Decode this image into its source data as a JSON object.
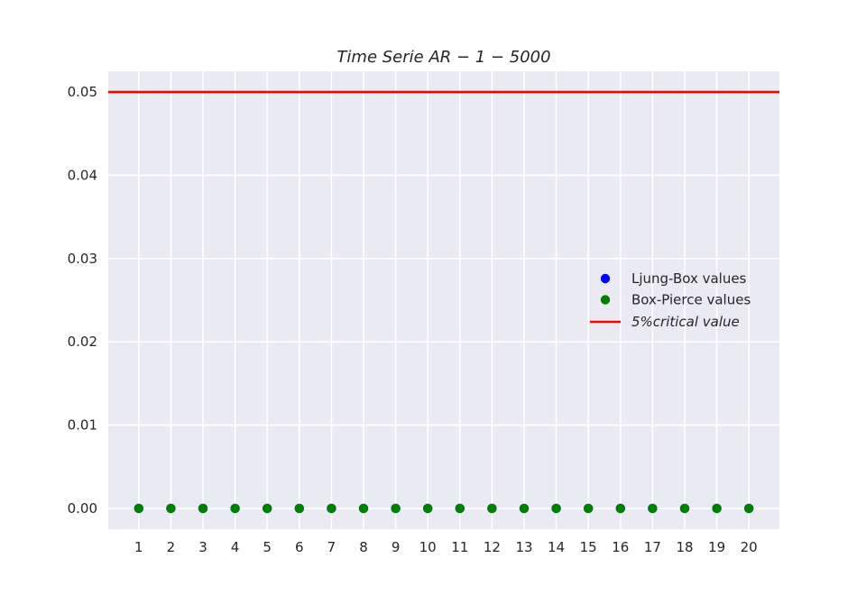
{
  "chart_data": {
    "type": "scatter",
    "title": "Time Serie AR − 1 − 5000",
    "xlabel": "",
    "ylabel": "",
    "x": [
      1,
      2,
      3,
      4,
      5,
      6,
      7,
      8,
      9,
      10,
      11,
      12,
      13,
      14,
      15,
      16,
      17,
      18,
      19,
      20
    ],
    "xlim": [
      0.05,
      20.95
    ],
    "ylim": [
      -0.0025,
      0.0525
    ],
    "yticks": [
      0.0,
      0.01,
      0.02,
      0.03,
      0.04,
      0.05
    ],
    "ytick_labels": [
      "0.00",
      "0.01",
      "0.02",
      "0.03",
      "0.04",
      "0.05"
    ],
    "xtick_labels": [
      "1",
      "2",
      "3",
      "4",
      "5",
      "6",
      "7",
      "8",
      "9",
      "10",
      "11",
      "12",
      "13",
      "14",
      "15",
      "16",
      "17",
      "18",
      "19",
      "20"
    ],
    "grid": true,
    "legend_position": "center-right",
    "series": [
      {
        "name": "Ljung-Box values",
        "kind": "scatter",
        "color": "#0000ff",
        "values": [
          0,
          0,
          0,
          0,
          0,
          0,
          0,
          0,
          0,
          0,
          0,
          0,
          0,
          0,
          0,
          0,
          0,
          0,
          0,
          0
        ]
      },
      {
        "name": "Box-Pierce values",
        "kind": "scatter",
        "color": "#008000",
        "values": [
          0,
          0,
          0,
          0,
          0,
          0,
          0,
          0,
          0,
          0,
          0,
          0,
          0,
          0,
          0,
          0,
          0,
          0,
          0,
          0
        ]
      },
      {
        "name": "5%critical value",
        "kind": "hline",
        "color": "#ff0000",
        "value": 0.05
      }
    ],
    "colors": {
      "plot_background": "#eaeaf2",
      "grid": "#ffffff"
    }
  }
}
